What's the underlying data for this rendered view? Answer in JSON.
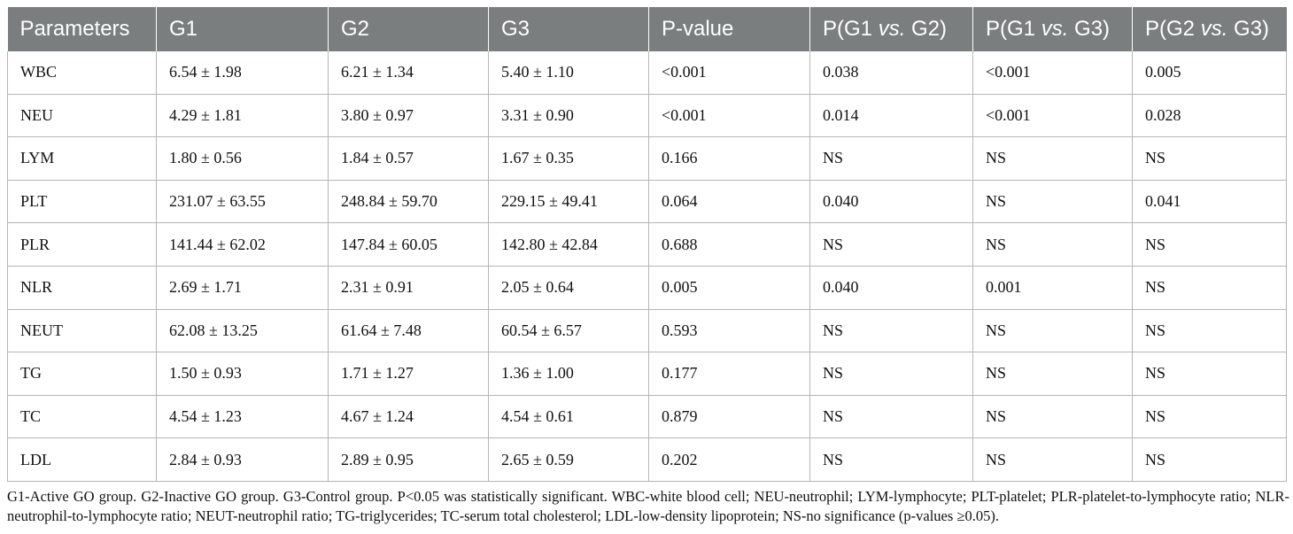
{
  "table": {
    "columns": [
      {
        "pre": "Parameters",
        "it": "",
        "post": ""
      },
      {
        "pre": "G1",
        "it": "",
        "post": ""
      },
      {
        "pre": "G2",
        "it": "",
        "post": ""
      },
      {
        "pre": "G3",
        "it": "",
        "post": ""
      },
      {
        "pre": "P-value",
        "it": "",
        "post": ""
      },
      {
        "pre": "P(G1 ",
        "it": "vs.",
        "post": " G2)"
      },
      {
        "pre": "P(G1 ",
        "it": "vs.",
        "post": " G3)"
      },
      {
        "pre": "P(G2 ",
        "it": "vs.",
        "post": " G3)"
      }
    ],
    "rows": [
      [
        "WBC",
        "6.54 ± 1.98",
        "6.21 ± 1.34",
        "5.40 ± 1.10",
        "<0.001",
        "0.038",
        "<0.001",
        "0.005"
      ],
      [
        "NEU",
        "4.29 ± 1.81",
        "3.80 ± 0.97",
        "3.31 ± 0.90",
        "<0.001",
        "0.014",
        "<0.001",
        "0.028"
      ],
      [
        "LYM",
        "1.80 ± 0.56",
        "1.84 ± 0.57",
        "1.67 ± 0.35",
        "0.166",
        "NS",
        "NS",
        "NS"
      ],
      [
        "PLT",
        "231.07 ± 63.55",
        "248.84 ± 59.70",
        "229.15 ± 49.41",
        "0.064",
        "0.040",
        "NS",
        "0.041"
      ],
      [
        "PLR",
        "141.44 ± 62.02",
        "147.84 ± 60.05",
        "142.80 ± 42.84",
        "0.688",
        "NS",
        "NS",
        "NS"
      ],
      [
        "NLR",
        "2.69 ± 1.71",
        "2.31 ± 0.91",
        "2.05 ± 0.64",
        "0.005",
        "0.040",
        "0.001",
        "NS"
      ],
      [
        "NEUT",
        "62.08 ± 13.25",
        "61.64 ± 7.48",
        "60.54 ± 6.57",
        "0.593",
        "NS",
        "NS",
        "NS"
      ],
      [
        "TG",
        "1.50 ± 0.93",
        "1.71 ± 1.27",
        "1.36 ± 1.00",
        "0.177",
        "NS",
        "NS",
        "NS"
      ],
      [
        "TC",
        "4.54 ± 1.23",
        "4.67 ± 1.24",
        "4.54 ± 0.61",
        "0.879",
        "NS",
        "NS",
        "NS"
      ],
      [
        "LDL",
        "2.84 ± 0.93",
        "2.89 ± 0.95",
        "2.65 ± 0.59",
        "0.202",
        "NS",
        "NS",
        "NS"
      ]
    ]
  },
  "footnote": "G1-Active GO group. G2-Inactive GO group. G3-Control group. P<0.05 was statistically significant. WBC-white blood cell; NEU-neutrophil; LYM-lymphocyte; PLT-platelet; PLR-platelet-to-lymphocyte ratio; NLR-neutrophil-to-lymphocyte ratio; NEUT-neutrophil ratio; TG-triglycerides; TC-serum total cholesterol; LDL-low-density lipoprotein; NS-no significance (p-values ≥0.05).",
  "colors": {
    "header_bg": "#7a7e7e",
    "header_text": "#ffffff",
    "grid": "#b5b5b5",
    "body_text": "#111111"
  }
}
